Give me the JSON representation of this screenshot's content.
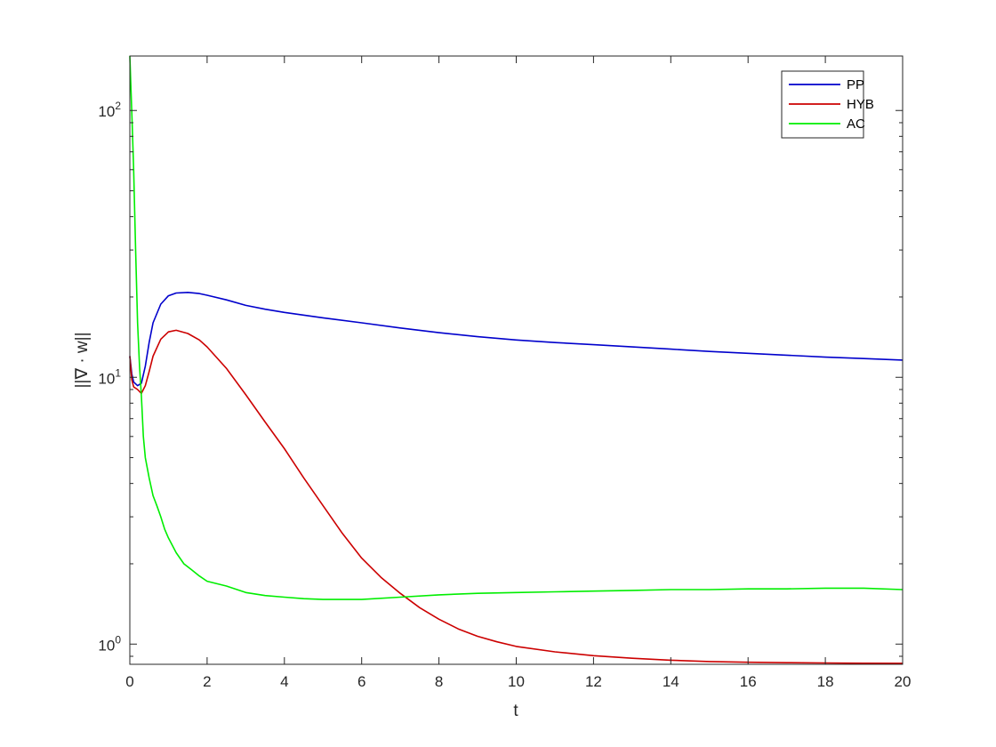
{
  "chart_data": {
    "type": "line",
    "title": "",
    "xlabel": "t",
    "ylabel": "||∇ · w||",
    "xlim": [
      0,
      20
    ],
    "ylim": [
      0.84,
      160
    ],
    "yscale": "log",
    "grid": false,
    "legend_position": "top-right",
    "xticks": [
      0,
      2,
      4,
      6,
      8,
      10,
      12,
      14,
      16,
      18,
      20
    ],
    "xtick_labels": [
      "0",
      "2",
      "4",
      "6",
      "8",
      "10",
      "12",
      "14",
      "16",
      "18",
      "20"
    ],
    "yticks": [
      1,
      10,
      100
    ],
    "ytick_labels": [
      {
        "base": "10",
        "exp": "0"
      },
      {
        "base": "10",
        "exp": "1"
      },
      {
        "base": "10",
        "exp": "2"
      }
    ],
    "series": [
      {
        "name": "PP",
        "color": "#0000cc",
        "x": [
          0,
          0.05,
          0.1,
          0.2,
          0.3,
          0.4,
          0.5,
          0.6,
          0.8,
          1.0,
          1.2,
          1.5,
          1.8,
          2.0,
          2.5,
          3,
          3.5,
          4,
          5,
          6,
          7,
          8,
          9,
          10,
          11,
          12,
          13,
          14,
          15,
          16,
          17,
          18,
          19,
          20
        ],
        "y": [
          12.0,
          10.3,
          9.6,
          9.3,
          9.5,
          11.0,
          13.5,
          16.0,
          18.8,
          20.2,
          20.7,
          20.8,
          20.6,
          20.3,
          19.5,
          18.6,
          18.0,
          17.5,
          16.7,
          16.0,
          15.3,
          14.7,
          14.2,
          13.8,
          13.5,
          13.25,
          13.0,
          12.75,
          12.5,
          12.3,
          12.1,
          11.9,
          11.75,
          11.6
        ]
      },
      {
        "name": "HYB",
        "color": "#cc0000",
        "x": [
          0,
          0.05,
          0.1,
          0.2,
          0.3,
          0.4,
          0.5,
          0.6,
          0.8,
          1.0,
          1.2,
          1.5,
          1.8,
          2.0,
          2.5,
          3,
          3.5,
          4,
          4.5,
          5,
          5.5,
          6,
          6.5,
          7,
          7.5,
          8,
          8.5,
          9,
          9.5,
          10,
          11,
          12,
          13,
          14,
          15,
          16,
          17,
          18,
          19,
          20
        ],
        "y": [
          12.0,
          9.8,
          9.2,
          9.0,
          8.7,
          9.3,
          10.5,
          12.0,
          13.9,
          14.8,
          15.0,
          14.6,
          13.8,
          13.0,
          10.8,
          8.6,
          6.8,
          5.4,
          4.2,
          3.3,
          2.6,
          2.1,
          1.78,
          1.55,
          1.37,
          1.24,
          1.14,
          1.07,
          1.02,
          0.98,
          0.935,
          0.905,
          0.885,
          0.87,
          0.86,
          0.855,
          0.852,
          0.85,
          0.848,
          0.847
        ]
      },
      {
        "name": "AC",
        "color": "#00ee00",
        "x": [
          0,
          0.03,
          0.06,
          0.1,
          0.15,
          0.2,
          0.25,
          0.3,
          0.35,
          0.4,
          0.5,
          0.6,
          0.7,
          0.8,
          0.9,
          1.0,
          1.2,
          1.4,
          1.6,
          1.8,
          2.0,
          2.5,
          3,
          3.5,
          4,
          4.5,
          5,
          6,
          7,
          8,
          9,
          10,
          11,
          12,
          13,
          14,
          15,
          16,
          17,
          18,
          19,
          20
        ],
        "y": [
          160,
          120,
          90,
          60,
          30,
          16,
          11,
          8.5,
          6.0,
          5.0,
          4.2,
          3.6,
          3.3,
          3.0,
          2.7,
          2.5,
          2.2,
          2.0,
          1.9,
          1.8,
          1.72,
          1.65,
          1.56,
          1.52,
          1.5,
          1.48,
          1.47,
          1.47,
          1.5,
          1.53,
          1.55,
          1.56,
          1.57,
          1.58,
          1.59,
          1.6,
          1.6,
          1.61,
          1.61,
          1.62,
          1.62,
          1.6
        ]
      }
    ]
  }
}
